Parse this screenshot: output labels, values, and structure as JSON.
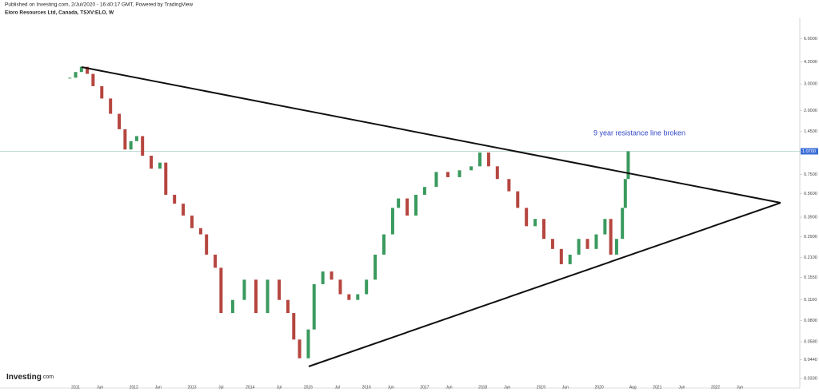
{
  "header": {
    "published": "Published on Investing.com, 2/Jul/2020 - 16:40:17 GMT, Powered by TradingView",
    "symbol": "Eloro Resources Ltd, Canada, TSXV:ELO, W",
    "logo": "Investing",
    "logo_suffix": ".com"
  },
  "chart_data": {
    "type": "candlestick",
    "log_scale": true,
    "annotation": "9 year resistance line broken",
    "x": [
      2010.9,
      2011.0,
      2011.1,
      2011.2,
      2011.3,
      2011.45,
      2011.6,
      2011.75,
      2011.85,
      2011.95,
      2012.05,
      2012.15,
      2012.3,
      2012.45,
      2012.55,
      2012.7,
      2012.85,
      2013.0,
      2013.15,
      2013.25,
      2013.4,
      2013.5,
      2013.7,
      2013.9,
      2014.1,
      2014.3,
      2014.5,
      2014.65,
      2014.75,
      2014.85,
      2015.0,
      2015.1,
      2015.25,
      2015.4,
      2015.55,
      2015.7,
      2015.85,
      2016.0,
      2016.15,
      2016.3,
      2016.45,
      2016.55,
      2016.7,
      2016.85,
      2017.0,
      2017.2,
      2017.4,
      2017.6,
      2017.8,
      2017.95,
      2018.1,
      2018.25,
      2018.45,
      2018.6,
      2018.75,
      2018.9,
      2019.05,
      2019.2,
      2019.35,
      2019.5,
      2019.65,
      2019.8,
      2019.95,
      2020.1,
      2020.2,
      2020.3,
      2020.4,
      2020.45,
      2020.5
    ],
    "values": [
      3.3,
      3.6,
      3.9,
      3.5,
      2.9,
      2.4,
      1.9,
      1.5,
      1.1,
      1.25,
      1.35,
      1.0,
      0.82,
      0.9,
      0.55,
      0.48,
      0.4,
      0.33,
      0.3,
      0.22,
      0.18,
      0.09,
      0.11,
      0.15,
      0.09,
      0.15,
      0.11,
      0.09,
      0.06,
      0.045,
      0.07,
      0.14,
      0.17,
      0.15,
      0.12,
      0.11,
      0.12,
      0.15,
      0.22,
      0.3,
      0.45,
      0.52,
      0.4,
      0.55,
      0.62,
      0.78,
      0.72,
      0.8,
      0.85,
      1.05,
      0.85,
      0.7,
      0.58,
      0.45,
      0.34,
      0.38,
      0.28,
      0.24,
      0.19,
      0.22,
      0.28,
      0.24,
      0.3,
      0.38,
      0.22,
      0.28,
      0.45,
      0.7,
      1.07
    ],
    "up_color": "#3a9a5e",
    "down_color": "#b5463f",
    "xlim": [
      2009.7,
      2023.45
    ],
    "xticks": [
      {
        "value": 2011,
        "label": "2011"
      },
      {
        "value": 2011.42,
        "label": "Jun"
      },
      {
        "value": 2012,
        "label": "2012"
      },
      {
        "value": 2012.42,
        "label": "Jun"
      },
      {
        "value": 2013,
        "label": "2013"
      },
      {
        "value": 2013.5,
        "label": "Jul"
      },
      {
        "value": 2014,
        "label": "2014"
      },
      {
        "value": 2014.5,
        "label": "Jul"
      },
      {
        "value": 2015,
        "label": "2015"
      },
      {
        "value": 2015.5,
        "label": "Jul"
      },
      {
        "value": 2016,
        "label": "2016"
      },
      {
        "value": 2016.42,
        "label": "Jun"
      },
      {
        "value": 2017,
        "label": "2017"
      },
      {
        "value": 2017.42,
        "label": "Jun"
      },
      {
        "value": 2018,
        "label": "2018"
      },
      {
        "value": 2018.42,
        "label": "Jun"
      },
      {
        "value": 2019,
        "label": "2019"
      },
      {
        "value": 2019.42,
        "label": "Jun"
      },
      {
        "value": 2020,
        "label": "2020"
      },
      {
        "value": 2020.58,
        "label": "Aug"
      },
      {
        "value": 2021,
        "label": "2021"
      },
      {
        "value": 2021.42,
        "label": "Jun"
      },
      {
        "value": 2022,
        "label": "2022"
      },
      {
        "value": 2022.42,
        "label": "Jun"
      }
    ],
    "ylim": [
      0.03,
      7.7
    ],
    "yticks": [
      {
        "value": 6,
        "label": "6.0000"
      },
      {
        "value": 4.2,
        "label": "4.2000"
      },
      {
        "value": 3,
        "label": "3.0000"
      },
      {
        "value": 2,
        "label": "2.0000"
      },
      {
        "value": 1.45,
        "label": "1.4500"
      },
      {
        "value": 0.75,
        "label": "0.7500"
      },
      {
        "value": 0.56,
        "label": "0.5600"
      },
      {
        "value": 0.39,
        "label": "0.3900"
      },
      {
        "value": 0.29,
        "label": "0.2900"
      },
      {
        "value": 0.21,
        "label": "0.2100"
      },
      {
        "value": 0.155,
        "label": "0.1550"
      },
      {
        "value": 0.11,
        "label": "0.1100"
      },
      {
        "value": 0.08,
        "label": "0.0800"
      },
      {
        "value": 0.058,
        "label": "0.0580"
      },
      {
        "value": 0.044,
        "label": "0.0440"
      },
      {
        "value": 0.033,
        "label": "0.0330"
      }
    ],
    "last_price": {
      "value": 1.07,
      "label": "1.0700"
    }
  }
}
